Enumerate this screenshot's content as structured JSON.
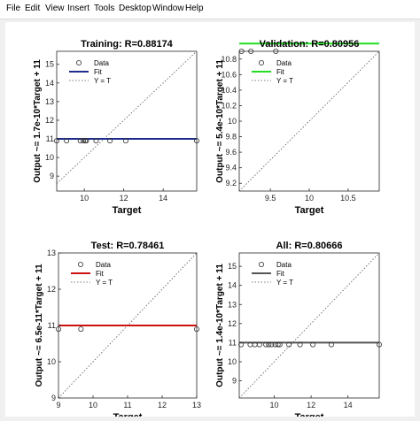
{
  "window": {
    "menu": [
      "File",
      "Edit",
      "View",
      "Insert",
      "Tools",
      "Desktop",
      "Window",
      "Help"
    ]
  },
  "legend_labels": [
    "Data",
    "Fit",
    "Y = T"
  ],
  "chart_data": [
    {
      "type": "scatter",
      "title": "Training: R=0.88174",
      "xlabel": "Target",
      "ylabel": "Output ~= 1.7e-10*Target + 11",
      "xlim": [
        8.6,
        15.7
      ],
      "ylim": [
        8.2,
        15.7
      ],
      "xticks": [
        10,
        12,
        14
      ],
      "yticks": [
        9,
        10,
        11,
        12,
        13,
        14,
        15
      ],
      "fit_color": "#1f2d8e",
      "fit": {
        "slope": 1.7e-10,
        "intercept": 11
      },
      "series": [
        {
          "x": [
            8.6,
            9.1,
            9.8,
            9.95,
            10.05,
            10.1,
            10.6,
            11.3,
            12.1,
            15.7
          ],
          "y": [
            10.9,
            10.9,
            10.9,
            10.9,
            10.9,
            10.9,
            10.9,
            10.9,
            10.9,
            10.9
          ]
        }
      ],
      "legend": "top-left"
    },
    {
      "type": "scatter",
      "title": "Validation: R=0.80956",
      "xlabel": "Target",
      "ylabel": "Output ~= 5.4e-10*Target + 11",
      "xlim": [
        9.1,
        10.9
      ],
      "ylim": [
        9.1,
        10.9
      ],
      "xticks": [
        9.5,
        10,
        10.5
      ],
      "yticks": [
        9.2,
        9.4,
        9.6,
        9.8,
        10,
        10.2,
        10.4,
        10.6,
        10.8
      ],
      "fit_color": "#22dd22",
      "fit": {
        "slope": 5.4e-10,
        "intercept": 11
      },
      "series": [
        {
          "x": [
            9.13,
            9.25,
            9.57
          ],
          "y": [
            10.9,
            10.9,
            10.9
          ]
        }
      ],
      "legend": "top-left"
    },
    {
      "type": "scatter",
      "title": "Test: R=0.78461",
      "xlabel": "Target",
      "ylabel": "Output ~= 6.5e-11*Target + 11",
      "xlim": [
        9,
        13
      ],
      "ylim": [
        9,
        13
      ],
      "xticks": [
        9,
        10,
        11,
        12,
        13
      ],
      "yticks": [
        9,
        10,
        11,
        12,
        13
      ],
      "fit_color": "#cc1111",
      "fit": {
        "slope": 6.5e-11,
        "intercept": 11
      },
      "series": [
        {
          "x": [
            9.0,
            9.65,
            13.0
          ],
          "y": [
            10.9,
            10.9,
            10.9
          ]
        }
      ],
      "legend": "top-left"
    },
    {
      "type": "scatter",
      "title": "All: R=0.80666",
      "xlabel": "Target",
      "ylabel": "Output ~= 1.4e-10*Target + 11",
      "xlim": [
        8.1,
        15.7
      ],
      "ylim": [
        8.1,
        15.7
      ],
      "xticks": [
        10,
        12,
        14
      ],
      "yticks": [
        9,
        10,
        11,
        12,
        13,
        14,
        15
      ],
      "fit_color": "#555555",
      "fit": {
        "slope": 1.4e-10,
        "intercept": 11
      },
      "series": [
        {
          "x": [
            8.2,
            8.7,
            8.95,
            9.2,
            9.55,
            9.7,
            9.85,
            10.05,
            10.2,
            10.3,
            10.8,
            11.4,
            12.1,
            13.1,
            15.7
          ],
          "y": [
            10.9,
            10.9,
            10.9,
            10.9,
            10.9,
            10.9,
            10.9,
            10.9,
            10.9,
            10.9,
            10.9,
            10.9,
            10.9,
            10.9,
            10.9
          ]
        }
      ],
      "legend": "top-left"
    }
  ]
}
